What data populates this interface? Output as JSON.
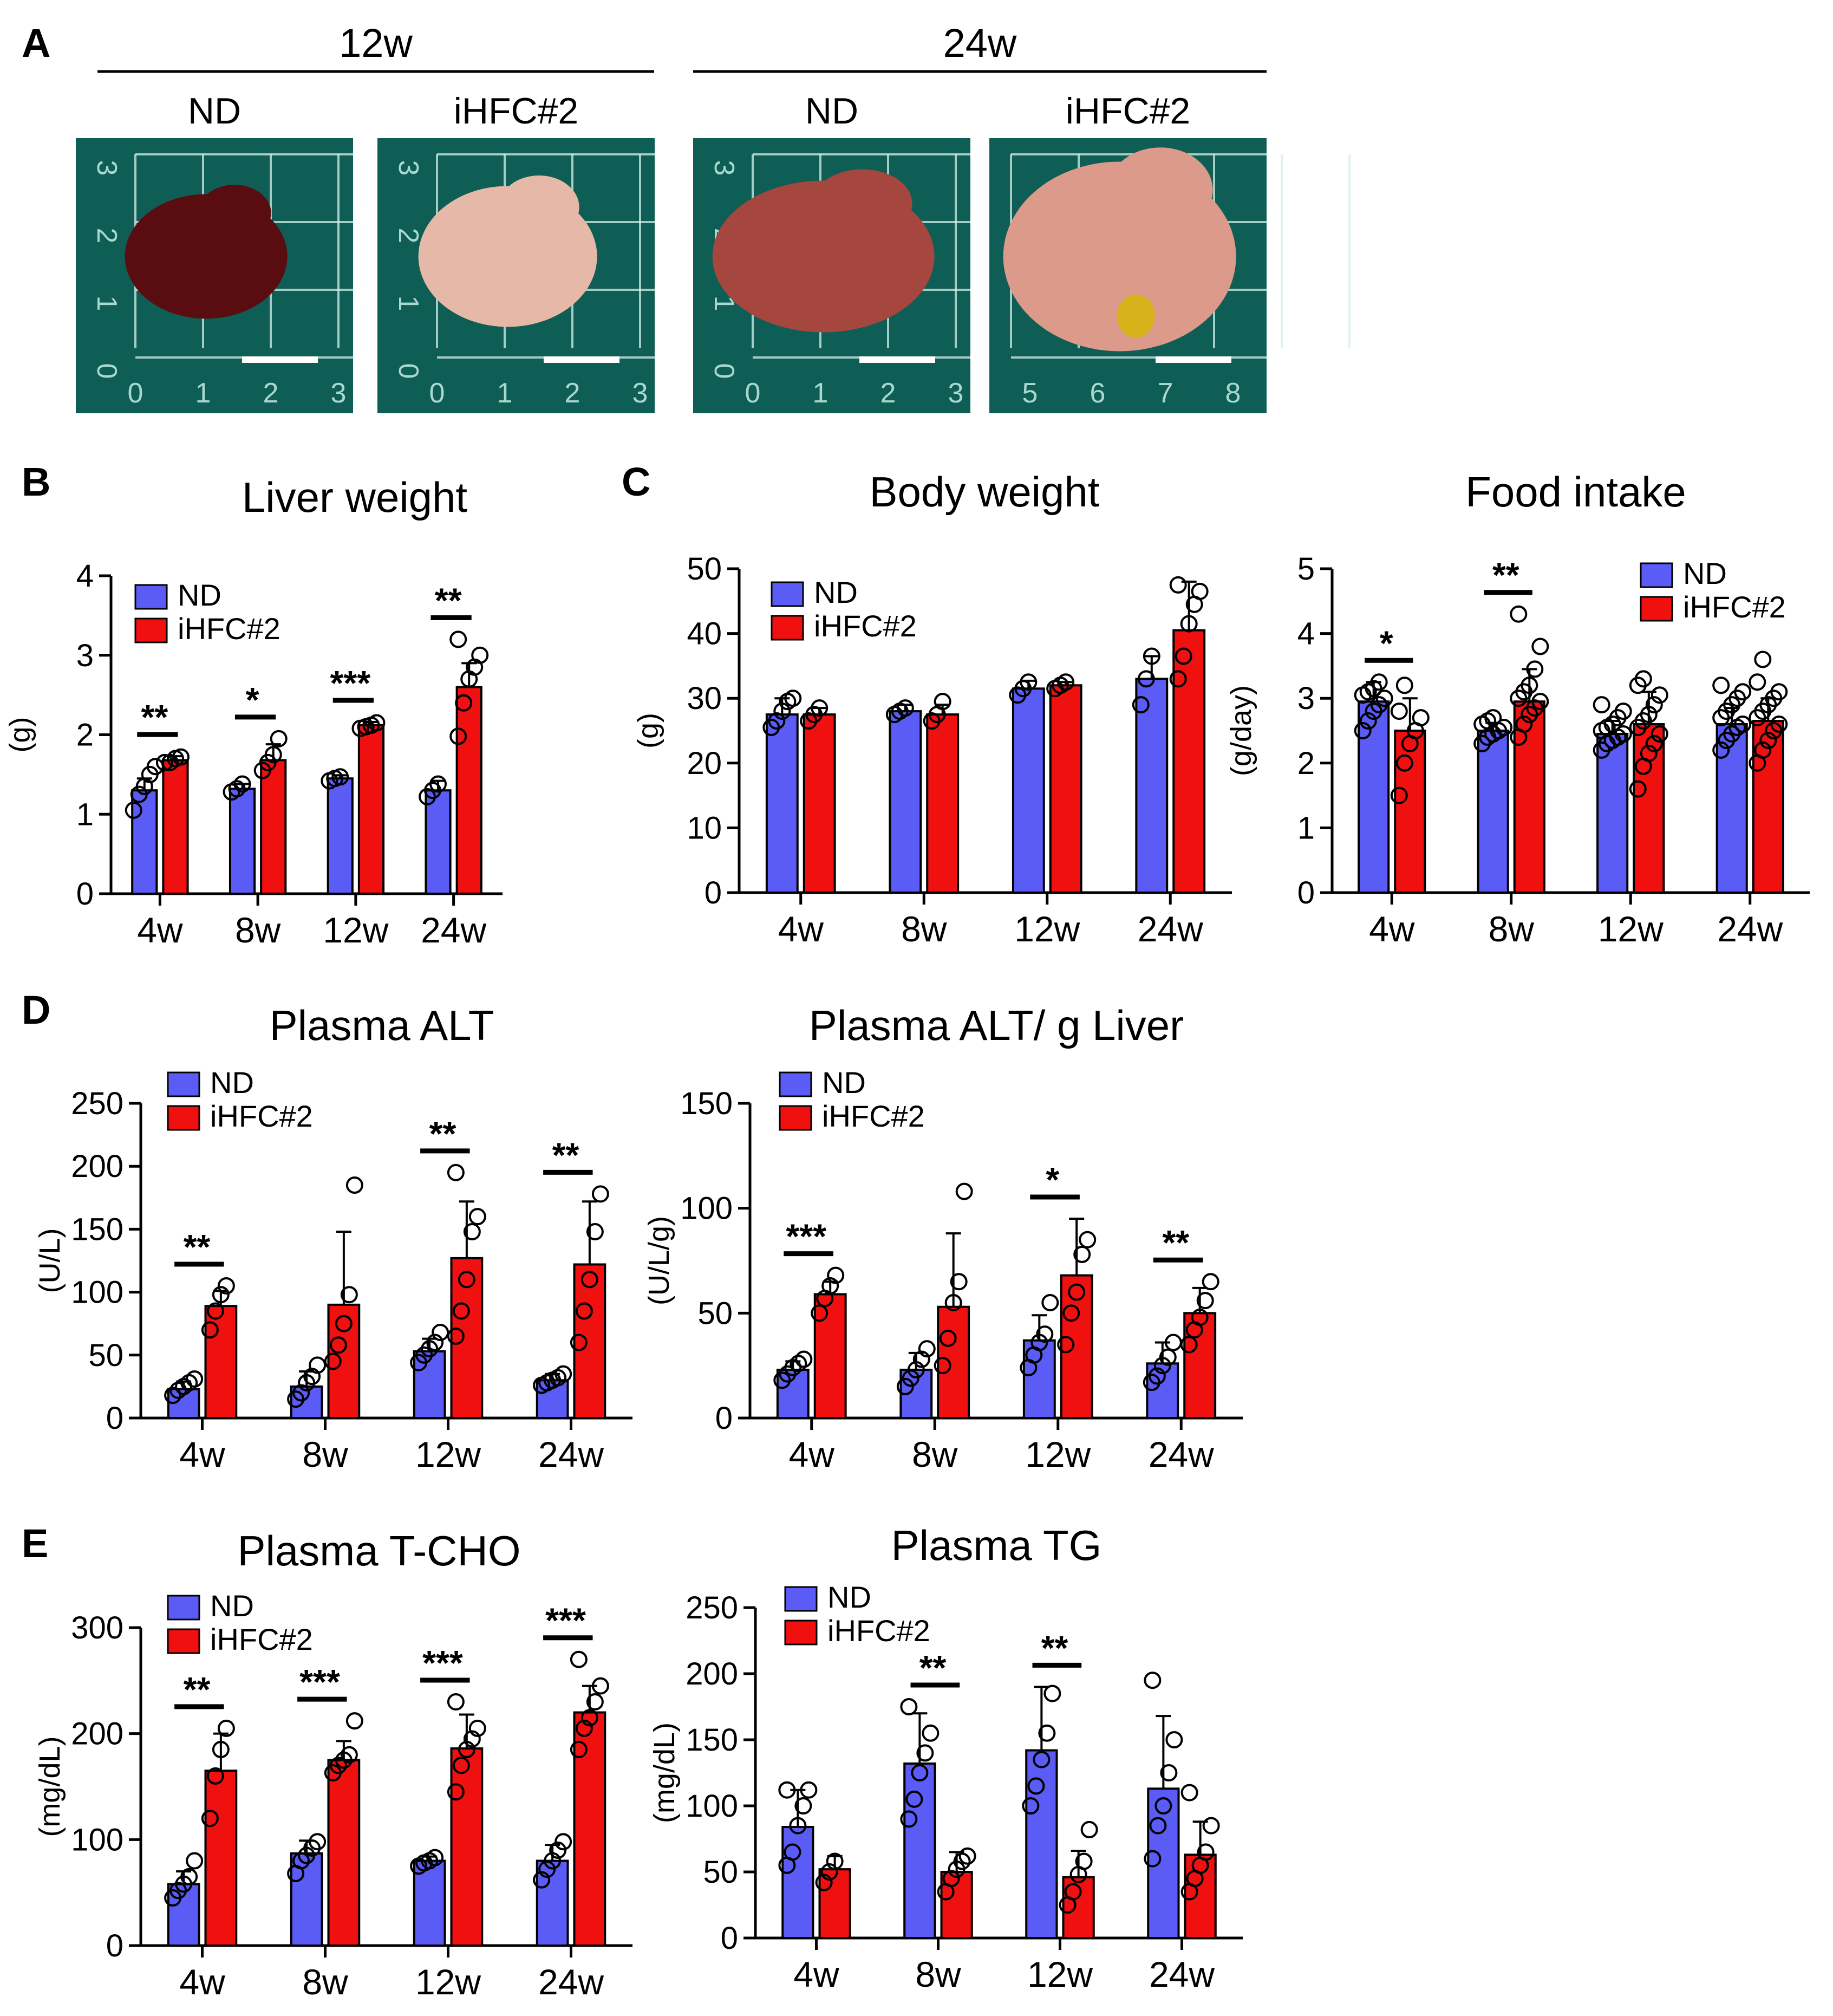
{
  "figure": {
    "panel_letters": {
      "A": "A",
      "B": "B",
      "C": "C",
      "D": "D",
      "E": "E"
    },
    "legend": {
      "nd": "ND",
      "hfc": "iHFC#2"
    },
    "colors": {
      "nd": "#5b5bf5",
      "hfc": "#f01010",
      "photo_bg": "#0f5e55",
      "grid": "#d6f0ea",
      "scale_bar": "#ffffff"
    }
  },
  "panel_a": {
    "groups": [
      {
        "label": "12w",
        "photos": [
          {
            "label": "ND",
            "liver": "dark red",
            "ruler_left": [
              "3",
              "2",
              "1",
              "0"
            ],
            "ruler_bottom": [
              "0",
              "1",
              "2",
              "3"
            ]
          },
          {
            "label": "iHFC#2",
            "liver": "pale pink",
            "ruler_left": [
              "3",
              "2",
              "1",
              "0"
            ],
            "ruler_bottom": [
              "0",
              "1",
              "2",
              "3"
            ]
          }
        ]
      },
      {
        "label": "24w",
        "photos": [
          {
            "label": "ND",
            "liver": "reddish brown",
            "ruler_left": [
              "3",
              "2",
              "1",
              "0"
            ],
            "ruler_bottom": [
              "0",
              "1",
              "2",
              "3"
            ]
          },
          {
            "label": "iHFC#2",
            "liver": "pale pink enlarged",
            "ruler_left": [],
            "ruler_bottom": [
              "5",
              "6",
              "7",
              "8"
            ]
          }
        ]
      }
    ]
  },
  "chart_data": [
    {
      "id": "liver",
      "type": "bar",
      "title": "Liver weight",
      "ylabel": "(g)",
      "ylim": [
        0,
        4
      ],
      "yticks": [
        0,
        1,
        2,
        3,
        4
      ],
      "categories": [
        "4w",
        "8w",
        "12w",
        "24w"
      ],
      "series": [
        {
          "name": "ND",
          "values": [
            1.3,
            1.32,
            1.45,
            1.3
          ],
          "err": [
            0.15,
            0.06,
            0.04,
            0.12
          ]
        },
        {
          "name": "iHFC#2",
          "values": [
            1.68,
            1.68,
            2.12,
            2.6
          ],
          "err": [
            0.05,
            0.2,
            0.04,
            0.3
          ]
        }
      ],
      "points": [
        [
          [
            1.05,
            1.25,
            1.35,
            1.5,
            1.6
          ],
          [
            1.65,
            1.65,
            1.7,
            1.72
          ]
        ],
        [
          [
            1.28,
            1.32,
            1.38
          ],
          [
            1.55,
            1.65,
            1.75,
            1.95
          ]
        ],
        [
          [
            1.42,
            1.45,
            1.47
          ],
          [
            2.08,
            2.1,
            2.12,
            2.15
          ]
        ],
        [
          [
            1.22,
            1.3,
            1.38
          ],
          [
            1.98,
            2.4,
            2.7,
            2.85,
            3.0,
            3.2
          ]
        ]
      ],
      "sig": [
        "**",
        "*",
        "***",
        "**"
      ],
      "legend_position": "top-left"
    },
    {
      "id": "bw",
      "type": "bar",
      "title": "Body weight",
      "ylabel": "(g)",
      "ylim": [
        0,
        50
      ],
      "yticks": [
        0,
        10,
        20,
        30,
        40,
        50
      ],
      "categories": [
        "4w",
        "8w",
        "12w",
        "24w"
      ],
      "series": [
        {
          "name": "ND",
          "values": [
            27.5,
            28,
            31.5,
            33
          ],
          "err": [
            2.5,
            1,
            1.2,
            3.5
          ]
        },
        {
          "name": "iHFC#2",
          "values": [
            27.5,
            27.5,
            32,
            40.5
          ],
          "err": [
            1,
            1.5,
            0.5,
            7.5
          ]
        }
      ],
      "points": [
        [
          [
            25.5,
            26.5,
            28,
            29.5,
            30
          ],
          [
            26.5,
            27.5,
            28.5
          ]
        ],
        [
          [
            27.5,
            28,
            28.5
          ],
          [
            26.5,
            27.5,
            29.5
          ]
        ],
        [
          [
            30.5,
            31.5,
            32.5
          ],
          [
            31.5,
            32,
            32.5
          ]
        ],
        [
          [
            29,
            33,
            36.5
          ],
          [
            33,
            36.5,
            41.5,
            44.5,
            46.5,
            47.5
          ]
        ]
      ],
      "sig": [
        "",
        "",
        "",
        ""
      ],
      "legend_position": "top-left"
    },
    {
      "id": "food",
      "type": "bar",
      "title": "Food intake",
      "ylabel": "(g/day)",
      "ylim": [
        0,
        5
      ],
      "yticks": [
        0,
        1,
        2,
        3,
        4,
        5
      ],
      "categories": [
        "4w",
        "8w",
        "12w",
        "24w"
      ],
      "series": [
        {
          "name": "ND",
          "values": [
            2.95,
            2.5,
            2.45,
            2.6
          ],
          "err": [
            0.3,
            0.12,
            0.2,
            0.25
          ]
        },
        {
          "name": "iHFC#2",
          "values": [
            2.5,
            2.95,
            2.6,
            2.65
          ],
          "err": [
            0.5,
            0.5,
            0.5,
            0.35
          ]
        }
      ],
      "points": [
        [
          [
            2.5,
            2.65,
            2.8,
            2.9,
            3.0,
            3.05,
            3.1,
            3.15,
            3.25
          ],
          [
            1.5,
            2.0,
            2.3,
            2.5,
            2.7,
            2.8,
            3.2
          ]
        ],
        [
          [
            2.3,
            2.4,
            2.45,
            2.5,
            2.55,
            2.6,
            2.65,
            2.7
          ],
          [
            2.4,
            2.6,
            2.75,
            2.85,
            2.95,
            3.0,
            3.1,
            3.2,
            3.45,
            3.8,
            4.3
          ]
        ],
        [
          [
            2.2,
            2.3,
            2.35,
            2.4,
            2.45,
            2.5,
            2.55,
            2.6,
            2.7,
            2.8,
            2.9
          ],
          [
            1.6,
            1.95,
            2.15,
            2.3,
            2.45,
            2.55,
            2.65,
            2.75,
            2.9,
            3.05,
            3.2,
            3.3
          ]
        ],
        [
          [
            2.2,
            2.35,
            2.45,
            2.55,
            2.6,
            2.7,
            2.8,
            2.9,
            3.0,
            3.1,
            3.2
          ],
          [
            2.0,
            2.2,
            2.35,
            2.5,
            2.6,
            2.7,
            2.8,
            2.9,
            3.0,
            3.1,
            3.25,
            3.6
          ]
        ]
      ],
      "sig": [
        "*",
        "**",
        "",
        ""
      ],
      "legend_position": "top-right"
    },
    {
      "id": "alt",
      "type": "bar",
      "title": "Plasma ALT",
      "ylabel": "(U/L)",
      "ylim": [
        0,
        250
      ],
      "yticks": [
        0,
        50,
        100,
        150,
        200,
        250
      ],
      "categories": [
        "4w",
        "8w",
        "12w",
        "24w"
      ],
      "series": [
        {
          "name": "ND",
          "values": [
            23,
            25,
            53,
            30
          ],
          "err": [
            6,
            12,
            10,
            5
          ]
        },
        {
          "name": "iHFC#2",
          "values": [
            89,
            90,
            127,
            122
          ],
          "err": [
            12,
            58,
            45,
            50
          ]
        }
      ],
      "points": [
        [
          [
            18,
            22,
            25,
            28,
            31
          ],
          [
            70,
            85,
            98,
            105
          ]
        ],
        [
          [
            15,
            20,
            28,
            33,
            42
          ],
          [
            45,
            58,
            75,
            98,
            185
          ]
        ],
        [
          [
            44,
            50,
            55,
            60,
            68
          ],
          [
            65,
            85,
            110,
            148,
            160,
            195
          ]
        ],
        [
          [
            26,
            28,
            30,
            32,
            35
          ],
          [
            60,
            85,
            110,
            148,
            178
          ]
        ]
      ],
      "sig": [
        "**",
        "",
        "**",
        "**"
      ],
      "legend_position": "top-left"
    },
    {
      "id": "altg",
      "type": "bar",
      "title": "Plasma ALT/ g Liver",
      "ylabel": "(U/L/g)",
      "ylim": [
        0,
        150
      ],
      "yticks": [
        0,
        50,
        100,
        150
      ],
      "categories": [
        "4w",
        "8w",
        "12w",
        "24w"
      ],
      "series": [
        {
          "name": "ND",
          "values": [
            23,
            23,
            37,
            26
          ],
          "err": [
            4,
            8,
            12,
            10
          ]
        },
        {
          "name": "iHFC#2",
          "values": [
            59,
            53,
            68,
            50
          ],
          "err": [
            6,
            35,
            27,
            12
          ]
        }
      ],
      "points": [
        [
          [
            18,
            21,
            24,
            26,
            28
          ],
          [
            50,
            57,
            63,
            68
          ]
        ],
        [
          [
            15,
            19,
            23,
            28,
            33
          ],
          [
            25,
            38,
            55,
            65,
            108
          ]
        ],
        [
          [
            24,
            30,
            36,
            40,
            55
          ],
          [
            35,
            50,
            60,
            78,
            85
          ]
        ],
        [
          [
            17,
            20,
            25,
            29,
            36
          ],
          [
            35,
            42,
            48,
            56,
            65
          ]
        ]
      ],
      "sig": [
        "***",
        "",
        "*",
        "**"
      ],
      "legend_position": "top-left"
    },
    {
      "id": "tcho",
      "type": "bar",
      "title": "Plasma T-CHO",
      "ylabel": "(mg/dL)",
      "ylim": [
        0,
        300
      ],
      "yticks": [
        0,
        100,
        200,
        300
      ],
      "categories": [
        "4w",
        "8w",
        "12w",
        "24w"
      ],
      "series": [
        {
          "name": "ND",
          "values": [
            58,
            87,
            80,
            80
          ],
          "err": [
            12,
            12,
            4,
            15
          ]
        },
        {
          "name": "iHFC#2",
          "values": [
            165,
            175,
            186,
            220
          ],
          "err": [
            35,
            18,
            32,
            25
          ]
        }
      ],
      "points": [
        [
          [
            45,
            52,
            58,
            65,
            80
          ],
          [
            120,
            160,
            185,
            205
          ]
        ],
        [
          [
            68,
            80,
            85,
            92,
            98
          ],
          [
            163,
            170,
            175,
            180,
            212
          ]
        ],
        [
          [
            75,
            78,
            80,
            83
          ],
          [
            145,
            170,
            185,
            195,
            205,
            230
          ]
        ],
        [
          [
            62,
            72,
            80,
            90,
            98
          ],
          [
            185,
            205,
            215,
            230,
            245,
            270
          ]
        ]
      ],
      "sig": [
        "**",
        "***",
        "***",
        "***"
      ],
      "legend_position": "top-left"
    },
    {
      "id": "tg",
      "type": "bar",
      "title": "Plasma TG",
      "ylabel": "(mg/dL)",
      "ylim": [
        0,
        250
      ],
      "yticks": [
        0,
        50,
        100,
        150,
        200,
        250
      ],
      "categories": [
        "4w",
        "8w",
        "12w",
        "24w"
      ],
      "series": [
        {
          "name": "ND",
          "values": [
            84,
            132,
            142,
            113
          ],
          "err": [
            28,
            38,
            48,
            55
          ]
        },
        {
          "name": "iHFC#2",
          "values": [
            52,
            50,
            46,
            63
          ],
          "err": [
            10,
            15,
            20,
            25
          ]
        }
      ],
      "points": [
        [
          [
            55,
            65,
            85,
            100,
            112,
            112
          ],
          [
            42,
            50,
            58
          ]
        ],
        [
          [
            90,
            105,
            125,
            140,
            155,
            175
          ],
          [
            35,
            45,
            52,
            58,
            62
          ]
        ],
        [
          [
            100,
            115,
            135,
            155,
            185
          ],
          [
            25,
            35,
            48,
            58,
            82
          ]
        ],
        [
          [
            60,
            85,
            100,
            125,
            150,
            195
          ],
          [
            35,
            45,
            55,
            65,
            85,
            110
          ]
        ]
      ],
      "sig": [
        "",
        "**",
        "**",
        ""
      ],
      "legend_position": "top-left"
    }
  ]
}
